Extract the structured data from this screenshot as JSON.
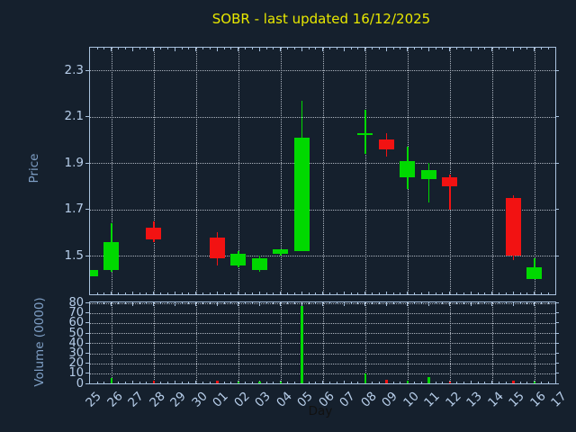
{
  "window": {
    "background_color": "#15202d"
  },
  "chart_data": {
    "type": "candlestick",
    "title": "SOBR - last updated 16/12/2025",
    "xlabel": "Day",
    "x_categories": [
      "25",
      "26",
      "27",
      "28",
      "29",
      "30",
      "01",
      "02",
      "03",
      "04",
      "05",
      "06",
      "07",
      "08",
      "09",
      "10",
      "11",
      "12",
      "13",
      "14",
      "15",
      "16",
      "17"
    ],
    "grid": true,
    "legend_position": "none",
    "panels": {
      "price": {
        "ylabel": "Price",
        "ylim": [
          1.33,
          2.4
        ],
        "yticks": [
          1.5,
          1.7,
          1.9,
          2.1,
          2.3
        ]
      },
      "volume": {
        "ylabel": "Volume (0000)",
        "ylim": [
          0,
          80.5
        ],
        "yticks": [
          0,
          10,
          20,
          30,
          40,
          50,
          60,
          70,
          80
        ]
      }
    },
    "vgrid_every_other_day_from": "26",
    "ohlcv": [
      {
        "day": "25",
        "open": 1.41,
        "high": 1.44,
        "low": 1.41,
        "close": 1.44,
        "volume": 0.4
      },
      {
        "day": "26",
        "open": 1.44,
        "high": 1.64,
        "low": 1.43,
        "close": 1.56,
        "volume": 5
      },
      {
        "day": "28",
        "open": 1.62,
        "high": 1.65,
        "low": 1.56,
        "close": 1.57,
        "volume": 2.5
      },
      {
        "day": "01",
        "open": 1.58,
        "high": 1.6,
        "low": 1.46,
        "close": 1.49,
        "volume": 3
      },
      {
        "day": "02",
        "open": 1.46,
        "high": 1.52,
        "low": 1.45,
        "close": 1.51,
        "volume": 2
      },
      {
        "day": "03",
        "open": 1.44,
        "high": 1.5,
        "low": 1.43,
        "close": 1.49,
        "volume": 1.5
      },
      {
        "day": "04",
        "open": 1.51,
        "high": 1.53,
        "low": 1.5,
        "close": 1.53,
        "volume": 2
      },
      {
        "day": "05",
        "open": 1.52,
        "high": 2.17,
        "low": 1.52,
        "close": 2.01,
        "volume": 77
      },
      {
        "day": "08",
        "open": 2.02,
        "high": 2.13,
        "low": 1.94,
        "close": 2.03,
        "volume": 10
      },
      {
        "day": "09",
        "open": 2.0,
        "high": 2.03,
        "low": 1.93,
        "close": 1.96,
        "volume": 4
      },
      {
        "day": "10",
        "open": 1.84,
        "high": 1.97,
        "low": 1.79,
        "close": 1.91,
        "volume": 2.5
      },
      {
        "day": "11",
        "open": 1.83,
        "high": 1.9,
        "low": 1.73,
        "close": 1.87,
        "volume": 6
      },
      {
        "day": "12",
        "open": 1.84,
        "high": 1.85,
        "low": 1.7,
        "close": 1.8,
        "volume": 1.5
      },
      {
        "day": "15",
        "open": 1.75,
        "high": 1.76,
        "low": 1.48,
        "close": 1.5,
        "volume": 3
      },
      {
        "day": "16",
        "open": 1.4,
        "high": 1.49,
        "low": 1.4,
        "close": 1.45,
        "volume": 2
      }
    ],
    "colors": {
      "up": "#00d900",
      "down": "#f21212",
      "background": "#15202d",
      "frame": "#a8c1dd",
      "grid": "#c8d0da",
      "tick_label": "#b6cde9",
      "axis_label": "#7e9ec4",
      "xlabel_color": "#111111",
      "title": "#e8e800"
    }
  }
}
